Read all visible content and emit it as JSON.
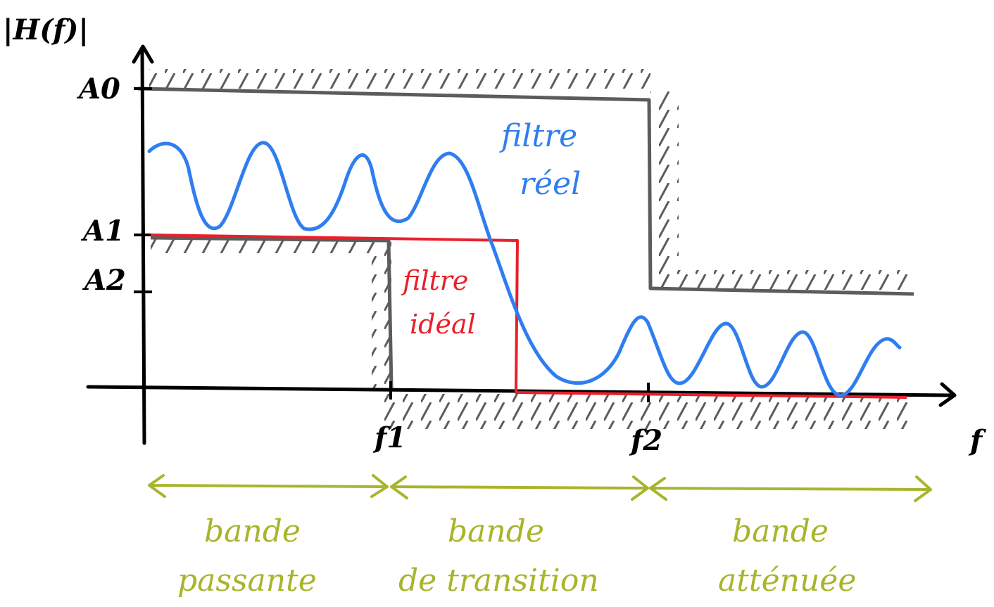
{
  "axes": {
    "y_label": "|H(f)|",
    "x_label": "f",
    "y_ticks": [
      "A0",
      "A1",
      "A2"
    ],
    "x_ticks": [
      "f1",
      "f2"
    ]
  },
  "curves": {
    "real_filter": {
      "line1": "filtre",
      "line2": "réel",
      "color": "#2f7ef0"
    },
    "ideal_filter": {
      "line1": "filtre",
      "line2": "idéal",
      "color": "#e8202a"
    },
    "template_color": "#5c5c5c"
  },
  "bands": [
    {
      "line1": "bande",
      "line2": "passante"
    },
    {
      "line1": "bande",
      "line2": "de transition"
    },
    {
      "line1": "bande",
      "line2": "atténuée"
    }
  ],
  "band_color": "#a8b52c"
}
